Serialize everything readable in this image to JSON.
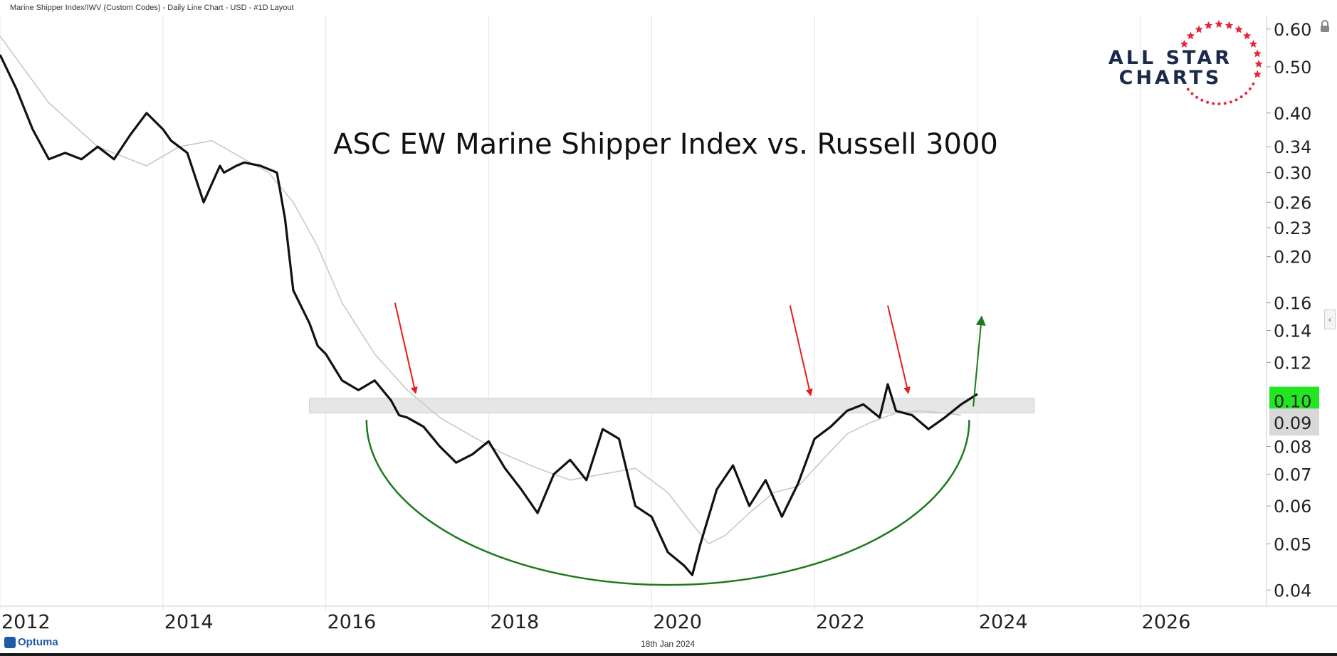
{
  "header": {
    "title": "Marine Shipper Index/IWV (Custom Codes) - Daily Line Chart - USD - #1D Layout"
  },
  "footer": {
    "date": "18th Jan 2024",
    "brand": "Optuma"
  },
  "logo": {
    "line1": "ALL STAR",
    "line2": "CHARTS"
  },
  "colors": {
    "price_line": "#111111",
    "moving_average": "#c8c8c8",
    "zone": "#e6e6e6",
    "arrow_red": "#e81b1b",
    "arc_green": "#1d7a1d",
    "last_value_bg": "#22e622",
    "ma_value_bg": "#d8d8d8",
    "logo_star": "#e3263b",
    "logo_text": "#1b2a4a"
  },
  "chart_data": {
    "type": "line",
    "title": "ASC EW Marine Shipper Index vs. Russell 3000",
    "y_scale": "log",
    "ylim": [
      0.037,
      0.64
    ],
    "xlim": [
      2012.0,
      2027.5
    ],
    "y_ticks": [
      "0.60",
      "0.50",
      "0.40",
      "0.34",
      "0.30",
      "0.26",
      "0.23",
      "0.20",
      "0.16",
      "0.14",
      "0.12",
      "0.08",
      "0.07",
      "0.06",
      "0.05",
      "0.04"
    ],
    "x_ticks": [
      "2012",
      "2014",
      "2016",
      "2018",
      "2020",
      "2022",
      "2024",
      "2026"
    ],
    "last_value_label": "0.10",
    "ma_value_label": "0.09",
    "zone": {
      "y_low": 0.094,
      "y_high": 0.101,
      "x_start": 2015.8,
      "x_end": 2024.7
    },
    "series": [
      {
        "x": [
          2012.0,
          2012.2,
          2012.4,
          2012.6,
          2012.8,
          2013.0,
          2013.2,
          2013.4,
          2013.6,
          2013.8,
          2014.0,
          2014.1,
          2014.3,
          2014.5,
          2014.7,
          2014.75,
          2014.9,
          2015.0,
          2015.2,
          2015.4,
          2015.5,
          2015.6,
          2015.8,
          2015.9,
          2016.0,
          2016.2,
          2016.4,
          2016.6,
          2016.8,
          2016.9,
          2017.0,
          2017.2,
          2017.4,
          2017.6,
          2017.8,
          2018.0,
          2018.2,
          2018.4,
          2018.6,
          2018.8,
          2019.0,
          2019.2,
          2019.4,
          2019.6,
          2019.8,
          2020.0,
          2020.2,
          2020.4,
          2020.5,
          2020.6,
          2020.8,
          2021.0,
          2021.2,
          2021.4,
          2021.6,
          2021.8,
          2022.0,
          2022.2,
          2022.4,
          2022.6,
          2022.8,
          2022.9,
          2023.0,
          2023.2,
          2023.4,
          2023.6,
          2023.8,
          2024.0
        ],
        "y": [
          0.53,
          0.45,
          0.37,
          0.32,
          0.33,
          0.32,
          0.34,
          0.32,
          0.36,
          0.4,
          0.37,
          0.35,
          0.33,
          0.26,
          0.31,
          0.3,
          0.31,
          0.315,
          0.31,
          0.3,
          0.24,
          0.17,
          0.145,
          0.13,
          0.125,
          0.11,
          0.105,
          0.11,
          0.1,
          0.093,
          0.092,
          0.088,
          0.08,
          0.074,
          0.077,
          0.082,
          0.072,
          0.065,
          0.058,
          0.07,
          0.075,
          0.068,
          0.087,
          0.083,
          0.06,
          0.057,
          0.048,
          0.045,
          0.043,
          0.05,
          0.065,
          0.073,
          0.06,
          0.068,
          0.057,
          0.067,
          0.083,
          0.088,
          0.095,
          0.098,
          0.092,
          0.108,
          0.095,
          0.093,
          0.087,
          0.092,
          0.098,
          0.103
        ]
      },
      {
        "x": [
          2012.0,
          2012.6,
          2013.2,
          2013.8,
          2014.2,
          2014.6,
          2015.0,
          2015.3,
          2015.6,
          2015.9,
          2016.2,
          2016.6,
          2017.0,
          2017.4,
          2017.8,
          2018.2,
          2018.6,
          2019.0,
          2019.4,
          2019.8,
          2020.2,
          2020.5,
          2020.7,
          2020.9,
          2021.2,
          2021.5,
          2021.8,
          2022.1,
          2022.4,
          2022.7,
          2023.0,
          2023.3,
          2023.6,
          2023.8
        ],
        "y": [
          0.58,
          0.42,
          0.34,
          0.31,
          0.34,
          0.35,
          0.32,
          0.3,
          0.26,
          0.21,
          0.16,
          0.125,
          0.105,
          0.092,
          0.084,
          0.077,
          0.072,
          0.068,
          0.07,
          0.072,
          0.064,
          0.055,
          0.05,
          0.052,
          0.058,
          0.064,
          0.066,
          0.075,
          0.085,
          0.09,
          0.094,
          0.095,
          0.094,
          0.093
        ]
      }
    ],
    "annotations": {
      "red_arrows": [
        {
          "from": [
            2016.85,
            0.16
          ],
          "to": [
            2017.1,
            0.104
          ]
        },
        {
          "from": [
            2021.7,
            0.158
          ],
          "to": [
            2021.95,
            0.103
          ]
        },
        {
          "from": [
            2022.9,
            0.158
          ],
          "to": [
            2023.15,
            0.104
          ]
        }
      ],
      "green_arc": {
        "x_start": 2016.5,
        "x_end": 2023.9,
        "y_top": 0.091,
        "y_bottom": 0.041
      },
      "green_arrow": {
        "from": [
          2023.95,
          0.097
        ],
        "to": [
          2024.05,
          0.148
        ]
      }
    }
  }
}
